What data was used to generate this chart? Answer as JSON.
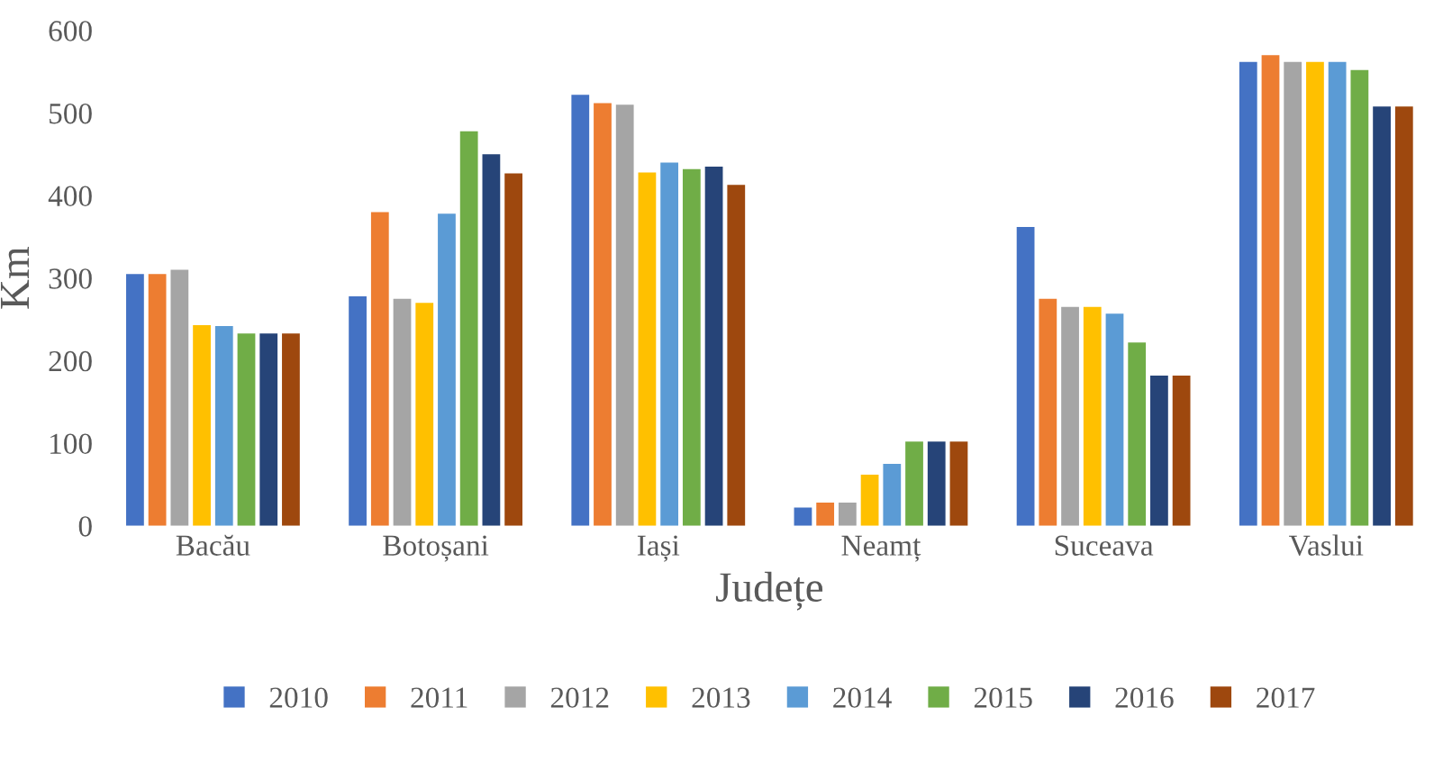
{
  "chart_data": {
    "type": "bar",
    "xlabel": "Județe",
    "ylabel": "Km",
    "categories": [
      "Bacău",
      "Botoșani",
      "Iași",
      "Neamț",
      "Suceava",
      "Vaslui"
    ],
    "ylim": [
      0,
      600
    ],
    "yticks": [
      0,
      100,
      200,
      300,
      400,
      500,
      600
    ],
    "grid": false,
    "legend": "bottom",
    "series": [
      {
        "name": "2010",
        "color": "#4472c4",
        "values": [
          305,
          278,
          522,
          22,
          362,
          562
        ]
      },
      {
        "name": "2011",
        "color": "#ed7d31",
        "values": [
          305,
          380,
          512,
          28,
          275,
          570
        ]
      },
      {
        "name": "2012",
        "color": "#a5a5a5",
        "values": [
          310,
          275,
          510,
          28,
          265,
          562
        ]
      },
      {
        "name": "2013",
        "color": "#ffc000",
        "values": [
          243,
          270,
          428,
          62,
          265,
          562
        ]
      },
      {
        "name": "2014",
        "color": "#5b9bd5",
        "values": [
          242,
          378,
          440,
          75,
          257,
          562
        ]
      },
      {
        "name": "2015",
        "color": "#70ad47",
        "values": [
          233,
          478,
          432,
          102,
          222,
          552
        ]
      },
      {
        "name": "2016",
        "color": "#264478",
        "values": [
          233,
          450,
          435,
          102,
          182,
          508
        ]
      },
      {
        "name": "2017",
        "color": "#9e480e",
        "values": [
          233,
          427,
          413,
          102,
          182,
          508
        ]
      }
    ]
  }
}
